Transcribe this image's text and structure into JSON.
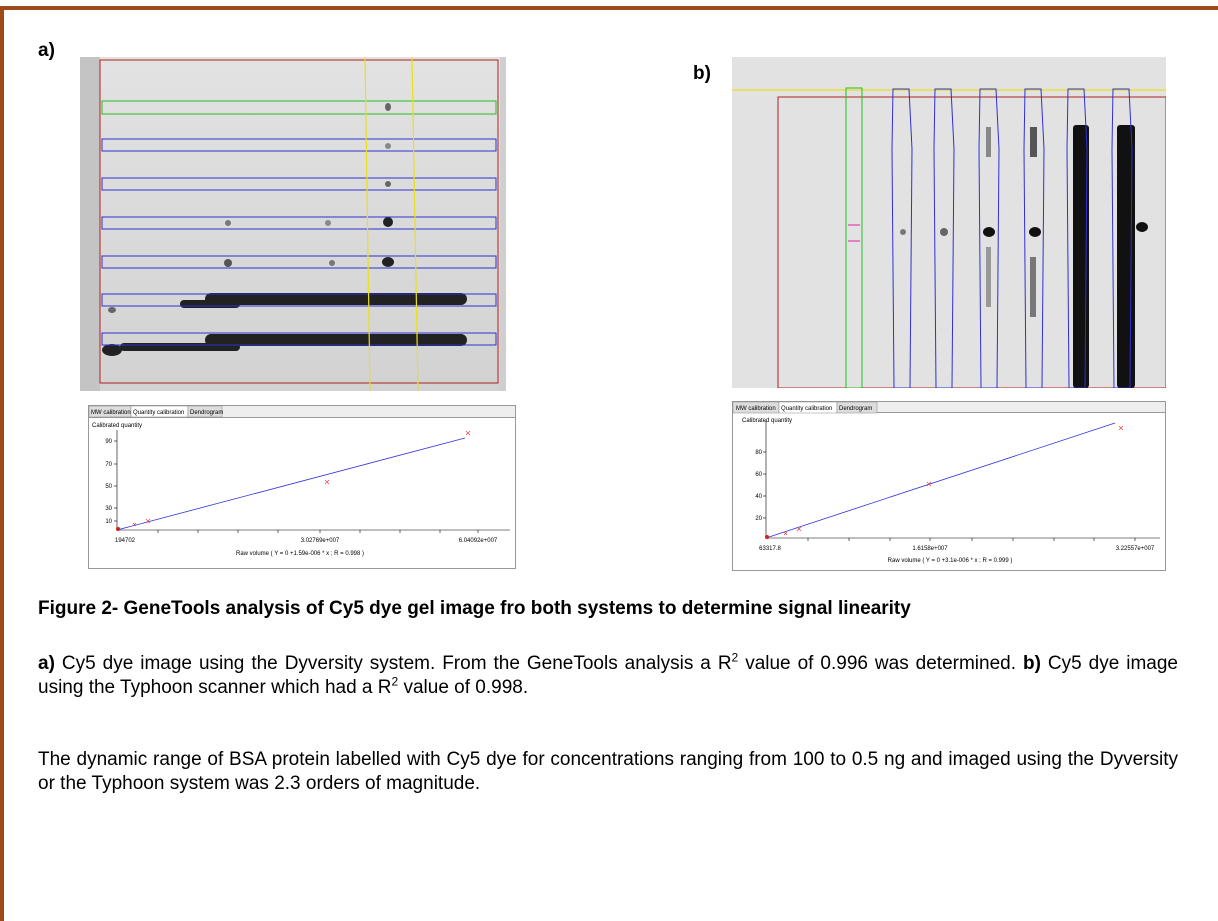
{
  "figure": {
    "panels": [
      {
        "label": "a)",
        "calibration": {
          "tabs": [
            "MW calibration",
            "Quantity calibration",
            "Dendrogram"
          ],
          "y_title": "Calibrated quantity",
          "y_labels": [
            "90",
            "70",
            "50",
            "30",
            "10"
          ],
          "x_labels": [
            "194702",
            "3.02769e+007",
            "6.04092e+007"
          ],
          "x_title": "Raw volume  ( Y = 0 +1.59e-006 * x  ; R = 0.998 )"
        }
      },
      {
        "label": "b)",
        "calibration": {
          "tabs": [
            "MW calibration",
            "Quantity calibration",
            "Dendrogram"
          ],
          "y_title": "Calibrated quantity",
          "y_labels": [
            "80",
            "60",
            "40",
            "20"
          ],
          "x_labels": [
            "63317.8",
            "1.6158e+007",
            "3.22557e+007"
          ],
          "x_title": "Raw volume  ( Y = 0 +3.1e-006 * x  ; R = 0.999 )"
        }
      }
    ],
    "caption": "Figure 2- GeneTools analysis of Cy5 dye gel image fro both systems to determine signal linearity"
  },
  "body": {
    "paragraph_1": {
      "a_label": "a)",
      "a_text": "Cy5 dye image using the Dyversity system. From the GeneTools analysis a R",
      "a_sup": "2",
      "a_text_end": "value of 0.996 was determined.",
      "b_label": "b)",
      "b_text": "Cy5 dye image using the Typhoon scanner which had a R",
      "b_sup": "2",
      "b_text_end": "value of 0.998."
    },
    "paragraph_2": "The dynamic range of BSA protein labelled with Cy5 dye for concentrations ranging from 100 to 0.5 ng and imaged using the Dyversity or the Typhoon system was 2.3 orders of magnitude."
  }
}
